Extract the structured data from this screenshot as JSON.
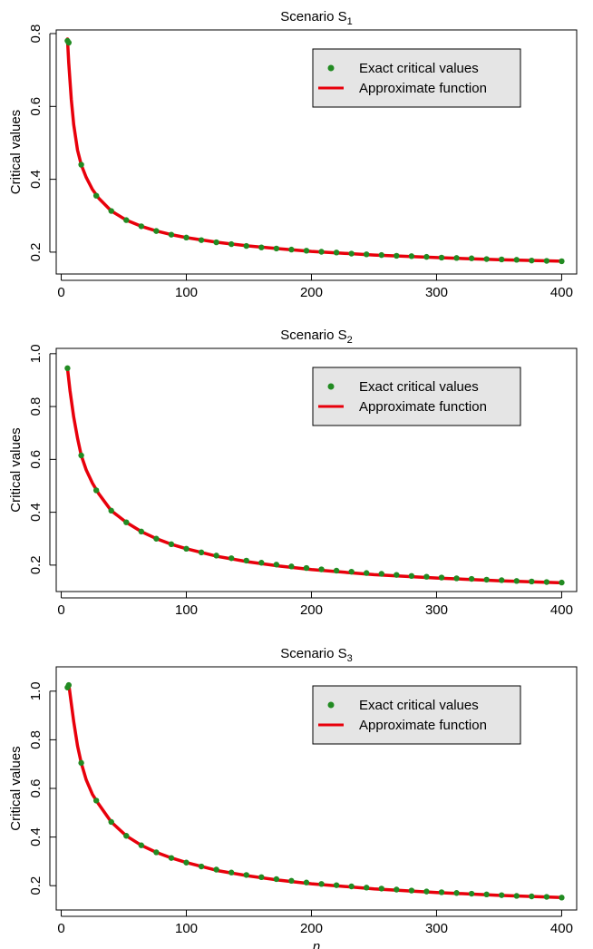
{
  "chart_data": [
    {
      "type": "scatter",
      "title": "Scenario S",
      "title_subscript": "1",
      "xlabel": "",
      "ylabel": "Critical values",
      "xlim": [
        -4,
        412
      ],
      "ylim": [
        0.14,
        0.81
      ],
      "xticks": [
        0,
        100,
        200,
        300,
        400
      ],
      "yticks": [
        0.2,
        0.4,
        0.6,
        0.8
      ],
      "ytick_labels": [
        "0.2",
        "0.4",
        "0.6",
        "0.8"
      ],
      "legend": {
        "position": "top-right",
        "entries": [
          "Exact critical values",
          "Approximate function"
        ]
      },
      "series": [
        {
          "name": "Exact critical values",
          "kind": "points",
          "color": "#228B22",
          "x": [
            5,
            6,
            16,
            28,
            40,
            52,
            64,
            76,
            88,
            100,
            112,
            124,
            136,
            148,
            160,
            172,
            184,
            196,
            208,
            220,
            232,
            244,
            256,
            268,
            280,
            292,
            304,
            316,
            328,
            340,
            352,
            364,
            376,
            388,
            400
          ],
          "y": [
            0.78,
            0.775,
            0.44,
            0.355,
            0.313,
            0.288,
            0.271,
            0.258,
            0.248,
            0.24,
            0.233,
            0.227,
            0.222,
            0.217,
            0.213,
            0.21,
            0.207,
            0.204,
            0.201,
            0.199,
            0.196,
            0.194,
            0.192,
            0.19,
            0.189,
            0.187,
            0.185,
            0.184,
            0.183,
            0.181,
            0.18,
            0.179,
            0.177,
            0.176,
            0.175
          ]
        },
        {
          "name": "Approximate function",
          "kind": "line",
          "color": "#E8000B",
          "x": [
            5,
            6,
            8,
            10,
            13,
            16,
            20,
            25,
            30,
            40,
            52,
            64,
            76,
            88,
            100,
            125,
            150,
            175,
            200,
            250,
            300,
            350,
            400
          ],
          "y": [
            0.785,
            0.72,
            0.62,
            0.55,
            0.48,
            0.44,
            0.405,
            0.372,
            0.348,
            0.313,
            0.288,
            0.271,
            0.258,
            0.248,
            0.24,
            0.227,
            0.217,
            0.209,
            0.202,
            0.192,
            0.185,
            0.179,
            0.175
          ]
        }
      ]
    },
    {
      "type": "scatter",
      "title": "Scenario S",
      "title_subscript": "2",
      "xlabel": "",
      "ylabel": "Critical values",
      "xlim": [
        -4,
        412
      ],
      "ylim": [
        0.1,
        1.02
      ],
      "xticks": [
        0,
        100,
        200,
        300,
        400
      ],
      "yticks": [
        0.2,
        0.4,
        0.6,
        0.8,
        1.0
      ],
      "ytick_labels": [
        "0.2",
        "0.4",
        "0.6",
        "0.8",
        "1.0"
      ],
      "legend": {
        "position": "top-right",
        "entries": [
          "Exact critical values",
          "Approximate function"
        ]
      },
      "series": [
        {
          "name": "Exact critical values",
          "kind": "points",
          "color": "#228B22",
          "x": [
            5,
            16,
            28,
            40,
            52,
            64,
            76,
            88,
            100,
            112,
            124,
            136,
            148,
            160,
            172,
            184,
            196,
            208,
            220,
            232,
            244,
            256,
            268,
            280,
            292,
            304,
            316,
            328,
            340,
            352,
            364,
            376,
            388,
            400
          ],
          "y": [
            0.945,
            0.615,
            0.483,
            0.406,
            0.362,
            0.327,
            0.3,
            0.279,
            0.262,
            0.248,
            0.236,
            0.226,
            0.217,
            0.209,
            0.202,
            0.195,
            0.189,
            0.184,
            0.179,
            0.175,
            0.17,
            0.167,
            0.163,
            0.159,
            0.156,
            0.153,
            0.15,
            0.148,
            0.145,
            0.143,
            0.14,
            0.138,
            0.136,
            0.134
          ]
        },
        {
          "name": "Approximate function",
          "kind": "line",
          "color": "#E8000B",
          "x": [
            5,
            7,
            10,
            13,
            16,
            20,
            25,
            30,
            40,
            52,
            64,
            76,
            88,
            100,
            125,
            150,
            175,
            200,
            250,
            300,
            350,
            400
          ],
          "y": [
            0.945,
            0.86,
            0.76,
            0.68,
            0.615,
            0.56,
            0.51,
            0.47,
            0.406,
            0.362,
            0.327,
            0.3,
            0.279,
            0.262,
            0.233,
            0.212,
            0.196,
            0.183,
            0.164,
            0.151,
            0.141,
            0.133
          ]
        }
      ]
    },
    {
      "type": "scatter",
      "title": "Scenario S",
      "title_subscript": "3",
      "xlabel": "n",
      "ylabel": "Critical values",
      "xlim": [
        -4,
        412
      ],
      "ylim": [
        0.1,
        1.1
      ],
      "xticks": [
        0,
        100,
        200,
        300,
        400
      ],
      "yticks": [
        0.2,
        0.4,
        0.6,
        0.8,
        1.0
      ],
      "ytick_labels": [
        "0.2",
        "0.4",
        "0.6",
        "0.8",
        "1.0"
      ],
      "legend": {
        "position": "top-right",
        "entries": [
          "Exact critical values",
          "Approximate function"
        ]
      },
      "series": [
        {
          "name": "Exact critical values",
          "kind": "points",
          "color": "#228B22",
          "x": [
            5,
            6,
            16,
            28,
            40,
            52,
            64,
            76,
            88,
            100,
            112,
            124,
            136,
            148,
            160,
            172,
            184,
            196,
            208,
            220,
            232,
            244,
            256,
            268,
            280,
            292,
            304,
            316,
            328,
            340,
            352,
            364,
            376,
            388,
            400
          ],
          "y": [
            1.015,
            1.025,
            0.705,
            0.55,
            0.462,
            0.405,
            0.366,
            0.337,
            0.314,
            0.295,
            0.279,
            0.266,
            0.254,
            0.244,
            0.235,
            0.227,
            0.22,
            0.213,
            0.207,
            0.202,
            0.197,
            0.192,
            0.188,
            0.184,
            0.18,
            0.176,
            0.173,
            0.17,
            0.167,
            0.164,
            0.161,
            0.158,
            0.156,
            0.154,
            0.151
          ]
        },
        {
          "name": "Approximate function",
          "kind": "line",
          "color": "#E8000B",
          "x": [
            6,
            7,
            8,
            10,
            13,
            16,
            20,
            25,
            30,
            40,
            52,
            64,
            76,
            88,
            100,
            125,
            150,
            175,
            200,
            250,
            300,
            350,
            400
          ],
          "y": [
            1.03,
            0.99,
            0.95,
            0.875,
            0.775,
            0.705,
            0.635,
            0.575,
            0.535,
            0.462,
            0.405,
            0.366,
            0.337,
            0.314,
            0.295,
            0.262,
            0.24,
            0.222,
            0.208,
            0.187,
            0.172,
            0.16,
            0.151
          ]
        }
      ]
    }
  ]
}
